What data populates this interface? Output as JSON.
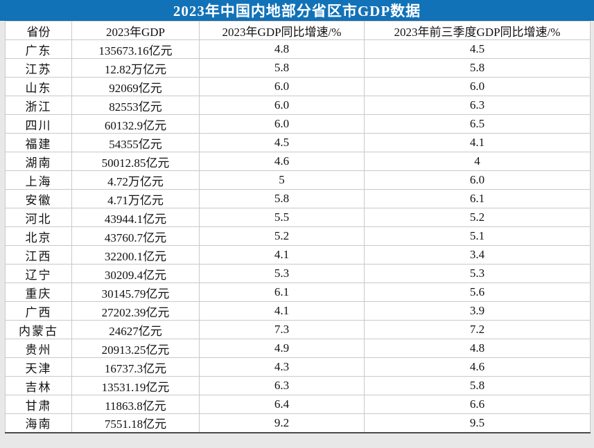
{
  "title": "2023年中国内地部分省区市GDP数据",
  "colors": {
    "title_bar_bg": "#1272B8",
    "title_text": "#FFFFFF",
    "table_bg": "#FFFFFF",
    "grid_line": "#C9C9C9",
    "bottom_border": "#4A4A4A",
    "page_margin_bg": "#E8E8E8",
    "body_text": "#111111"
  },
  "chart_data": {
    "type": "table",
    "title": "2023年中国内地部分省区市GDP数据",
    "columns": [
      "省份",
      "2023年GDP",
      "2023年GDP同比增速/%",
      "2023年前三季度GDP同比增速/%"
    ],
    "rows": [
      [
        "广东",
        "135673.16亿元",
        "4.8",
        "4.5"
      ],
      [
        "江苏",
        "12.82万亿元",
        "5.8",
        "5.8"
      ],
      [
        "山东",
        "92069亿元",
        "6.0",
        "6.0"
      ],
      [
        "浙江",
        "82553亿元",
        "6.0",
        "6.3"
      ],
      [
        "四川",
        "60132.9亿元",
        "6.0",
        "6.5"
      ],
      [
        "福建",
        "54355亿元",
        "4.5",
        "4.1"
      ],
      [
        "湖南",
        "50012.85亿元",
        "4.6",
        "4"
      ],
      [
        "上海",
        "4.72万亿元",
        "5",
        "6.0"
      ],
      [
        "安徽",
        "4.71万亿元",
        "5.8",
        "6.1"
      ],
      [
        "河北",
        "43944.1亿元",
        "5.5",
        "5.2"
      ],
      [
        "北京",
        "43760.7亿元",
        "5.2",
        "5.1"
      ],
      [
        "江西",
        "32200.1亿元",
        "4.1",
        "3.4"
      ],
      [
        "辽宁",
        "30209.4亿元",
        "5.3",
        "5.3"
      ],
      [
        "重庆",
        "30145.79亿元",
        "6.1",
        "5.6"
      ],
      [
        "广西",
        "27202.39亿元",
        "4.1",
        "3.9"
      ],
      [
        "内蒙古",
        "24627亿元",
        "7.3",
        "7.2"
      ],
      [
        "贵州",
        "20913.25亿元",
        "4.9",
        "4.8"
      ],
      [
        "天津",
        "16737.3亿元",
        "4.3",
        "4.6"
      ],
      [
        "吉林",
        "13531.19亿元",
        "6.3",
        "5.8"
      ],
      [
        "甘肃",
        "11863.8亿元",
        "6.4",
        "6.6"
      ],
      [
        "海南",
        "7551.18亿元",
        "9.2",
        "9.5"
      ]
    ]
  }
}
